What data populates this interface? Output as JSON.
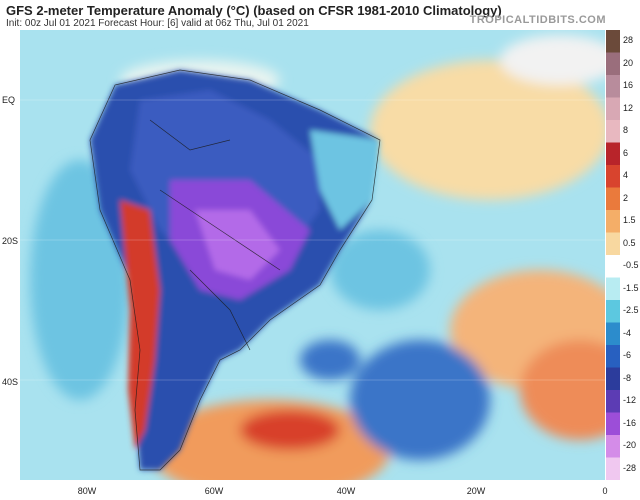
{
  "header": {
    "title": "GFS 2-meter Temperature Anomaly (°C) (based on CFSR 1981-2010 Climatology)",
    "subtitle": "Init: 00z Jul 01 2021   Forecast Hour: [6]   valid at 06z Thu, Jul 01 2021",
    "brand": "TROPICALTIDBITS.COM"
  },
  "axes": {
    "lat_labels": [
      "EQ",
      "20S",
      "40S"
    ],
    "lon_labels": [
      "80W",
      "60W",
      "40W",
      "20W",
      "0"
    ]
  },
  "colorbar": {
    "ticks": [
      "28",
      "20",
      "16",
      "12",
      "8",
      "6",
      "4",
      "2",
      "1.5",
      "0.5",
      "-0.5",
      "-1.5",
      "-2.5",
      "-4",
      "-6",
      "-8",
      "-12",
      "-16",
      "-20",
      "-28"
    ],
    "colors": [
      "#6b4a3a",
      "#9a6e7c",
      "#b88c9c",
      "#d8a8b4",
      "#e8b8c0",
      "#b8242a",
      "#d8442e",
      "#ea7a3c",
      "#f4ae68",
      "#f8d8a0",
      "#ffffff",
      "#b8ecf2",
      "#5cc8e0",
      "#2c8ccc",
      "#2860c0",
      "#2c3c9c",
      "#5c3cb4",
      "#9c4ed8",
      "#d48ce8",
      "#f0c8f0"
    ]
  },
  "map": {
    "land_color": "#6ba4d9",
    "cold_color": "#2a4fae",
    "very_cold_color": "#8a48d8",
    "warm_color": "#ef8a4a",
    "hot_color": "#d33a2a",
    "ocean_color": "#a9e2ef"
  }
}
